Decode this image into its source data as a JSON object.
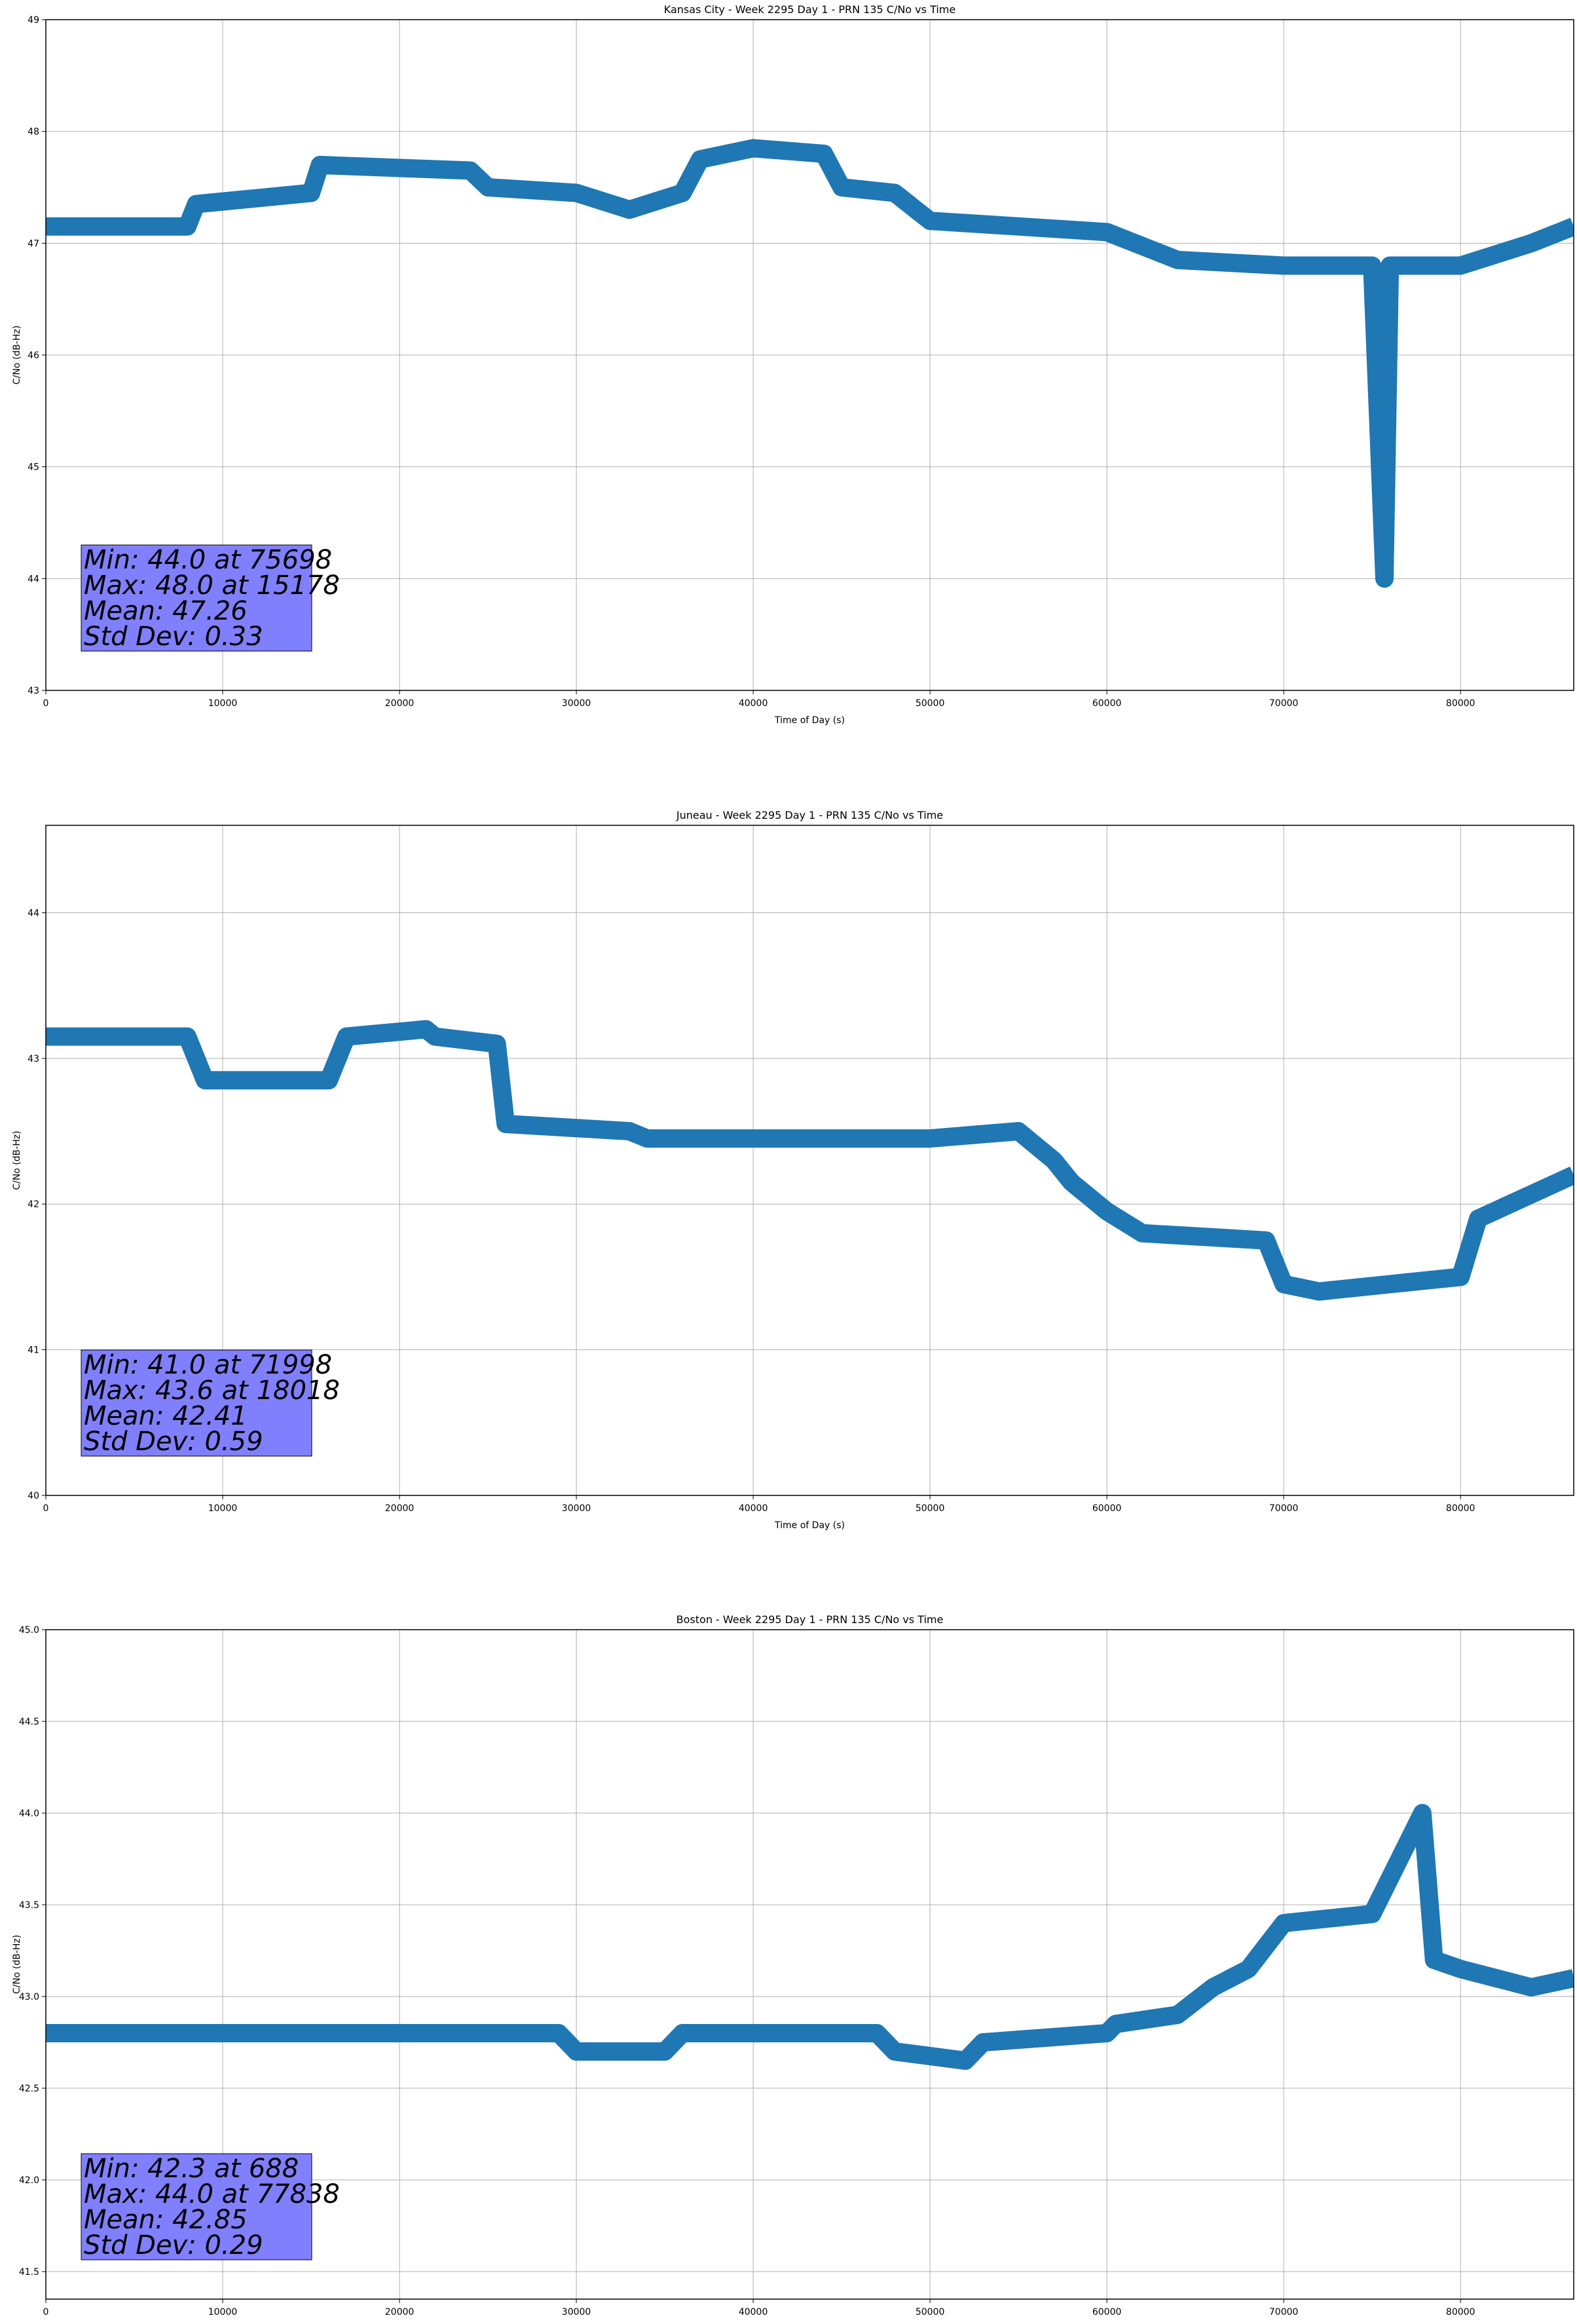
{
  "chart_data": [
    {
      "type": "line",
      "title": "Kansas City - Week 2295 Day 1 - PRN 135 C/No vs Time",
      "xlabel": "Time of Day (s)",
      "ylabel": "C/No (dB-Hz)",
      "xlim": [
        0,
        86400
      ],
      "ylim": [
        43,
        49
      ],
      "x_ticks": [
        0,
        10000,
        20000,
        30000,
        40000,
        50000,
        60000,
        70000,
        80000
      ],
      "y_ticks": [
        "43",
        "44",
        "45",
        "46",
        "47",
        "48",
        "49"
      ],
      "grid": true,
      "series_color": "#1f77b4",
      "series": [
        {
          "x": [
            0,
            8000,
            8500,
            15000,
            15500,
            24000,
            25000,
            30000,
            33000,
            36000,
            37000,
            40000,
            44000,
            45000,
            48000,
            50000,
            55000,
            60000,
            64000,
            70000,
            75000,
            75698,
            76000,
            80000,
            84000,
            86400
          ],
          "y": [
            47.15,
            47.15,
            47.35,
            47.45,
            47.7,
            47.65,
            47.5,
            47.45,
            47.3,
            47.45,
            47.75,
            47.85,
            47.8,
            47.5,
            47.45,
            47.2,
            47.15,
            47.1,
            46.85,
            46.8,
            46.8,
            44.0,
            46.8,
            46.8,
            47.0,
            47.15
          ]
        }
      ],
      "stats": [
        "Min: 44.0 at 75698",
        "Max: 48.0 at 15178",
        "Mean: 47.26",
        "Std Dev: 0.33"
      ]
    },
    {
      "type": "line",
      "title": "Juneau - Week 2295 Day 1 - PRN 135 C/No vs Time",
      "xlabel": "Time of Day (s)",
      "ylabel": "C/No (dB-Hz)",
      "xlim": [
        0,
        86400
      ],
      "ylim": [
        40,
        44.6
      ],
      "x_ticks": [
        0,
        10000,
        20000,
        30000,
        40000,
        50000,
        60000,
        70000,
        80000
      ],
      "y_ticks": [
        "40",
        "41",
        "42",
        "43",
        "44"
      ],
      "grid": true,
      "series_color": "#1f77b4",
      "series": [
        {
          "x": [
            0,
            8000,
            9000,
            16000,
            17000,
            21500,
            22000,
            25500,
            26000,
            33000,
            34000,
            50000,
            55000,
            57000,
            58000,
            60000,
            62000,
            69000,
            70000,
            72000,
            76000,
            80000,
            81000,
            86400
          ],
          "y": [
            43.15,
            43.15,
            42.85,
            42.85,
            43.15,
            43.2,
            43.15,
            43.1,
            42.55,
            42.5,
            42.45,
            42.45,
            42.5,
            42.3,
            42.15,
            41.95,
            41.8,
            41.75,
            41.45,
            41.4,
            41.45,
            41.5,
            41.9,
            42.2
          ]
        }
      ],
      "stats": [
        "Min: 41.0 at 71998",
        "Max: 43.6 at 18018",
        "Mean: 42.41",
        "Std Dev: 0.59"
      ]
    },
    {
      "type": "line",
      "title": "Boston - Week 2295 Day 1 - PRN 135 C/No vs Time",
      "xlabel": "Time of Day (s)",
      "ylabel": "C/No (dB-Hz)",
      "xlim": [
        0,
        86400
      ],
      "ylim": [
        41.35,
        45.0
      ],
      "x_ticks": [
        0,
        10000,
        20000,
        30000,
        40000,
        50000,
        60000,
        70000,
        80000
      ],
      "y_ticks": [
        "41.5",
        "42.0",
        "42.5",
        "43.0",
        "43.5",
        "44.0",
        "44.5",
        "45.0"
      ],
      "grid": true,
      "series_color": "#1f77b4",
      "series": [
        {
          "x": [
            0,
            10000,
            20000,
            29000,
            30000,
            35000,
            36000,
            47000,
            48000,
            52000,
            53000,
            60000,
            60500,
            64000,
            66000,
            68000,
            70000,
            75000,
            77838,
            78500,
            80000,
            84000,
            86400
          ],
          "y": [
            42.8,
            42.8,
            42.8,
            42.8,
            42.7,
            42.7,
            42.8,
            42.8,
            42.7,
            42.65,
            42.75,
            42.8,
            42.85,
            42.9,
            43.05,
            43.15,
            43.4,
            43.45,
            44.0,
            43.2,
            43.15,
            43.05,
            43.1
          ]
        }
      ],
      "stats": [
        "Min: 42.3 at 688",
        "Max: 44.0 at 77838",
        "Mean: 42.85",
        "Std Dev: 0.29"
      ]
    }
  ]
}
